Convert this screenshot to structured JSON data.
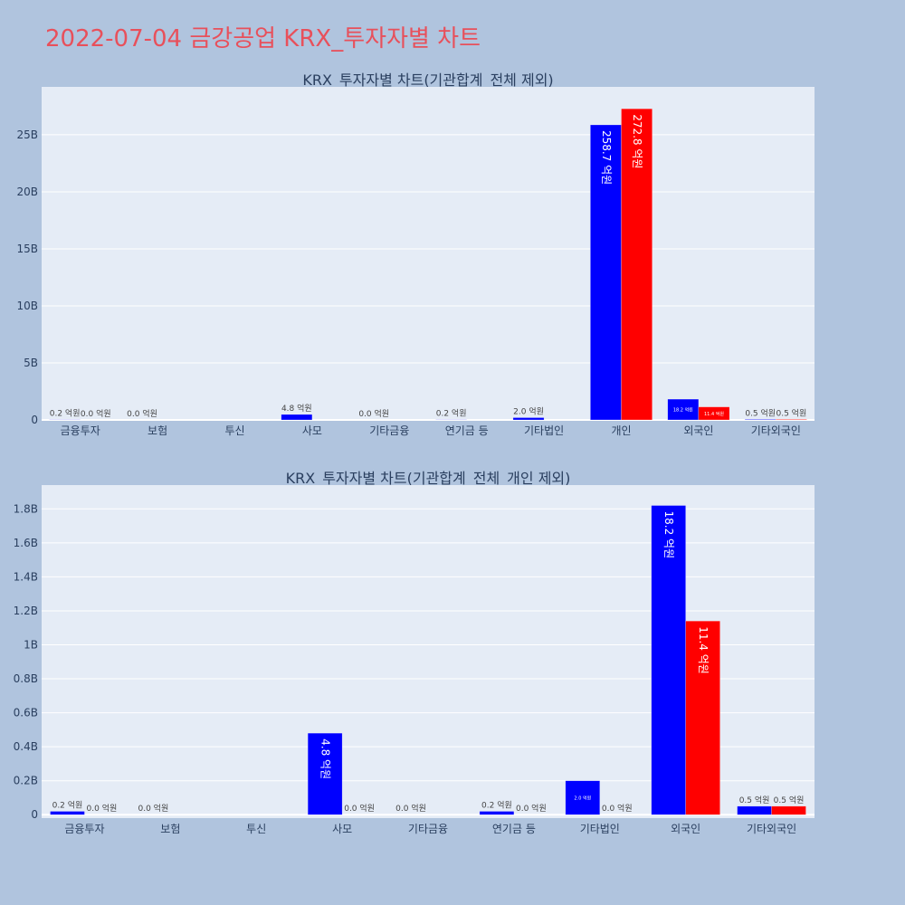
{
  "page": {
    "title": "2022-07-04 금강공업 KRX_투자자별 차트"
  },
  "colors": {
    "background": "#b0c4de",
    "plot_bg": "#e5ecf6",
    "series_a": "#0000ff",
    "series_b": "#ff0000",
    "title": "#e8505b"
  },
  "chart_data": [
    {
      "type": "bar",
      "title": "KRX_투자자별 차트(기관합계_전체 제외)",
      "categories": [
        "금융투자",
        "보험",
        "투신",
        "사모",
        "기타금융",
        "연기금 등",
        "기타법인",
        "개인",
        "외국인",
        "기타외국인"
      ],
      "yticks": [
        0,
        5,
        10,
        15,
        20,
        25
      ],
      "ytick_labels": [
        "0",
        "5B",
        "10B",
        "15B",
        "20B",
        "25B"
      ],
      "ylim": [
        0,
        29.2
      ],
      "grid": true,
      "series": [
        {
          "values": [
            0.02,
            0.0,
            0.0,
            0.48,
            0.0,
            0.02,
            0.2,
            25.87,
            1.82,
            0.05
          ],
          "labels": [
            "0.2 억원",
            "0.0 억원",
            "",
            "4.8 억원",
            "0.0 억원",
            "0.2 억원",
            "2.0 억원",
            "258.7 억원",
            "18.2 억원",
            "0.5 억원"
          ]
        },
        {
          "values": [
            0.0,
            null,
            null,
            null,
            null,
            null,
            null,
            27.28,
            1.14,
            0.05
          ],
          "labels": [
            "0.0 억원",
            "",
            "",
            "",
            "",
            "",
            "",
            "272.8 억원",
            "11.4 억원",
            "0.5 억원"
          ]
        }
      ]
    },
    {
      "type": "bar",
      "title": "KRX_투자자별 차트(기관합계_전체_개인 제외)",
      "categories": [
        "금융투자",
        "보험",
        "투신",
        "사모",
        "기타금융",
        "연기금 등",
        "기타법인",
        "외국인",
        "기타외국인"
      ],
      "yticks": [
        0,
        0.2,
        0.4,
        0.6,
        0.8,
        1.0,
        1.2,
        1.4,
        1.6,
        1.8
      ],
      "ytick_labels": [
        "0",
        "0.2B",
        "0.4B",
        "0.6B",
        "0.8B",
        "1B",
        "1.2B",
        "1.4B",
        "1.6B",
        "1.8B"
      ],
      "ylim": [
        -0.02,
        1.94
      ],
      "grid": true,
      "series": [
        {
          "values": [
            0.02,
            0.0,
            0.0,
            0.48,
            0.0,
            0.02,
            0.2,
            1.82,
            0.05
          ],
          "labels": [
            "0.2 억원",
            "0.0 억원",
            "",
            "4.8 억원",
            "0.0 억원",
            "0.2 억원",
            "2.0 억원",
            "18.2 억원",
            "0.5 억원"
          ]
        },
        {
          "values": [
            0.0,
            null,
            null,
            0.0,
            null,
            0.0,
            0.0,
            1.14,
            0.05
          ],
          "labels": [
            "0.0 억원",
            "",
            "",
            "0.0 억원",
            "",
            "0.0 억원",
            "0.0 억원",
            "11.4 억원",
            "0.5 억원"
          ]
        }
      ]
    }
  ]
}
